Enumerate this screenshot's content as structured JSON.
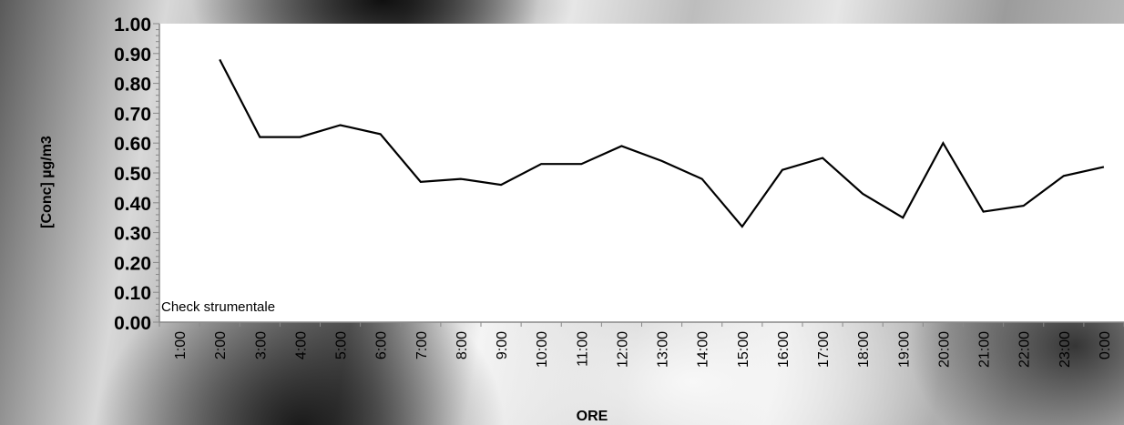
{
  "chart_data": {
    "type": "line",
    "title": "",
    "xlabel": "ORE",
    "ylabel": "[Conc] µg/m3",
    "ylim": [
      0,
      1
    ],
    "ytick_labels": [
      "0.00",
      "0.10",
      "0.20",
      "0.30",
      "0.40",
      "0.50",
      "0.60",
      "0.70",
      "0.80",
      "0.90",
      "1.00"
    ],
    "categories": [
      "1:00",
      "2:00",
      "3:00",
      "4:00",
      "5:00",
      "6:00",
      "7:00",
      "8:00",
      "9:00",
      "10:00",
      "11:00",
      "12:00",
      "13:00",
      "14:00",
      "15:00",
      "16:00",
      "17:00",
      "18:00",
      "19:00",
      "20:00",
      "21:00",
      "22:00",
      "23:00",
      "0:00"
    ],
    "series": [
      {
        "values": [
          null,
          0.88,
          0.62,
          0.62,
          0.66,
          0.63,
          0.47,
          0.48,
          0.46,
          0.53,
          0.53,
          0.59,
          0.54,
          0.48,
          0.32,
          0.51,
          0.55,
          0.43,
          0.35,
          0.6,
          0.37,
          0.39,
          0.49,
          0.52
        ]
      }
    ],
    "annotation": "Check strumentale",
    "legend": "none",
    "grid": false
  },
  "colors": {
    "line": "#000000",
    "plot_bg": "#ffffff"
  }
}
